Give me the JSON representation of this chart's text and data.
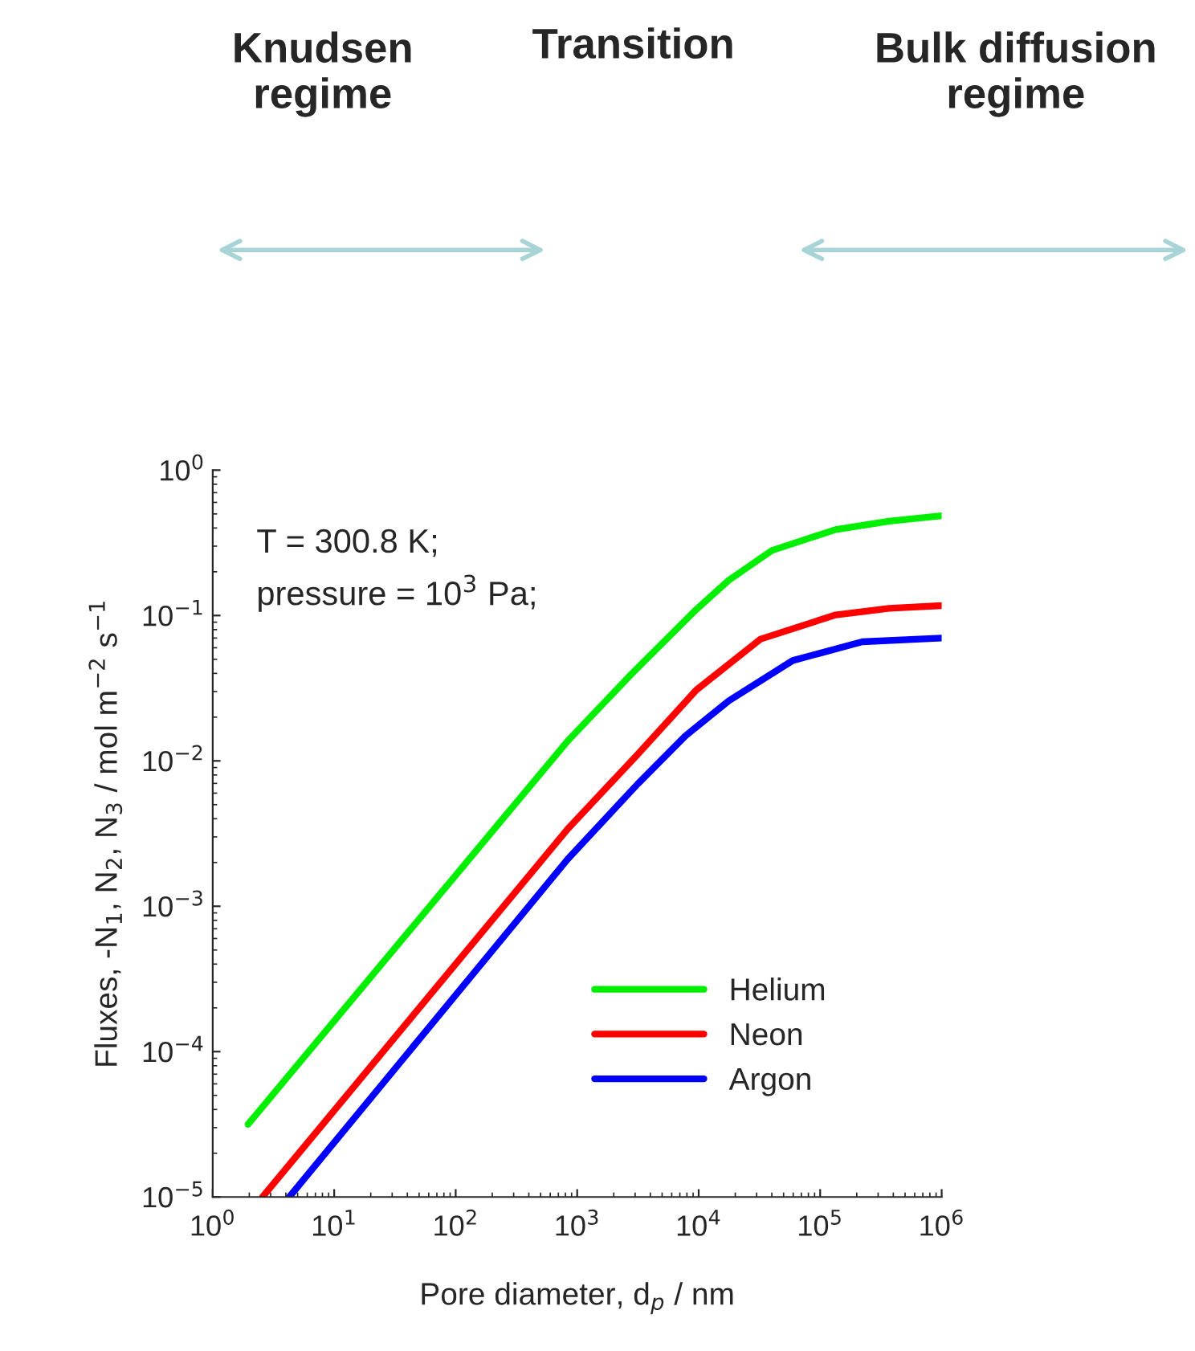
{
  "chart_data": {
    "type": "line",
    "xlabel": "Pore diameter, d$_{p}$ / nm",
    "ylabel": "Fluxes, -N$_{1}$, N$_{2}$, N$_{3}$ / mol m$^{−2}$ s$^{−1}$",
    "annotations": [
      "Knudsen\nregime",
      "Transition",
      "Bulk diffusion\nregime",
      "T = 300.8 K;\npressure = 10$^{3}$ Pa;"
    ],
    "log": "xy",
    "xlim": [
      1,
      1000000
    ],
    "ylim": [
      1e-05,
      1
    ],
    "xticks": [
      {
        "value": 1,
        "label": "10$^{0}$"
      },
      {
        "value": 10,
        "label": "10$^{1}$"
      },
      {
        "value": 100,
        "label": "10$^{2}$"
      },
      {
        "value": 1000,
        "label": "10$^{3}$"
      },
      {
        "value": 10000,
        "label": "10$^{4}$"
      },
      {
        "value": 100000,
        "label": "10$^{5}$"
      },
      {
        "value": 1000000,
        "label": "10$^{6}$"
      }
    ],
    "yticks": [
      {
        "value": 1e-05,
        "label": "10$^{−5}$"
      },
      {
        "value": 0.0001,
        "label": "10$^{−4}$"
      },
      {
        "value": 0.001,
        "label": "10$^{−3}$"
      },
      {
        "value": 0.01,
        "label": "10$^{−2}$"
      },
      {
        "value": 0.1,
        "label": "10$^{−1}$"
      },
      {
        "value": 1,
        "label": "10$^{0}$"
      }
    ],
    "grid": false,
    "legend": "bottom right",
    "series": [
      {
        "name": "Helium",
        "color": "#00ee00",
        "x": [
          1.95,
          835,
          2830,
          9550,
          17700,
          40000,
          134000,
          370000,
          1000000
        ],
        "values": [
          3.16e-05,
          0.0137,
          0.04,
          0.11,
          0.175,
          0.28,
          0.39,
          0.446,
          0.485
        ]
      },
      {
        "name": "Neon",
        "color": "#ff0000",
        "x": [
          2.57,
          835,
          3150,
          9550,
          32400,
          134000,
          370000,
          1000000
        ],
        "values": [
          1e-05,
          0.0034,
          0.0111,
          0.0307,
          0.0689,
          0.101,
          0.112,
          0.117
        ]
      },
      {
        "name": "Argon",
        "color": "#0000ff",
        "x": [
          4.27,
          835,
          3150,
          7800,
          17700,
          59400,
          222000,
          1000000
        ],
        "values": [
          1e-05,
          0.00211,
          0.00694,
          0.0149,
          0.0259,
          0.049,
          0.066,
          0.07
        ]
      }
    ]
  }
}
